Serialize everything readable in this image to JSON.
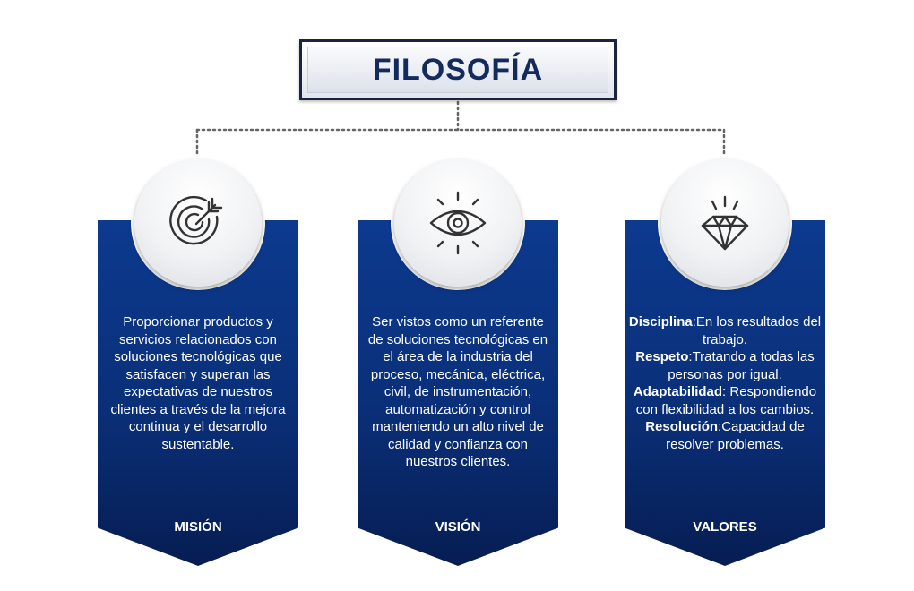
{
  "title": "FILOSOFÍA",
  "colors": {
    "card": "#0a2f78",
    "title_border": "#1a2340",
    "title_text": "#132a5c",
    "icon_stroke": "#333333"
  },
  "sections": [
    {
      "label": "MISIÓN",
      "icon": "target-icon",
      "text": "Proporcionar productos y servicios relacionados con soluciones tecnológicas que satisfacen y superan las expectativas de nuestros clientes a través de la  mejora continua y el desarrollo sustentable."
    },
    {
      "label": "VISIÓN",
      "icon": "eye-icon",
      "text": "Ser vistos como un referente de soluciones tecnológicas en el área de la industria del proceso, mecánica, eléctrica, civil, de instrumentación, automatización y control manteniendo un alto nivel de calidad y confianza con nuestros clientes."
    },
    {
      "label": "VALORES",
      "icon": "diamond-icon",
      "values": [
        {
          "term": "Disciplina",
          "desc": ":En los resultados del trabajo."
        },
        {
          "term": "Respeto",
          "desc": ":Tratando a todas las personas por igual."
        },
        {
          "term": "Adaptabilidad",
          "desc": ": Respondiendo con flexibilidad a los cambios."
        },
        {
          "term": "Resolución",
          "desc": ":Capacidad de resolver problemas."
        }
      ]
    }
  ]
}
